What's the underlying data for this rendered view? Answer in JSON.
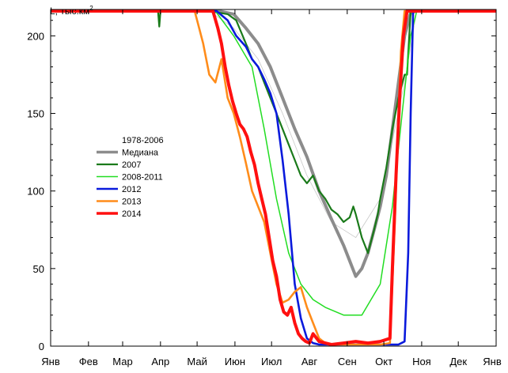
{
  "chart_data": {
    "type": "line",
    "title": "",
    "xlabel": "",
    "ylabel": "L, тыс.км",
    "ylabel_superscript": "2",
    "xlim": [
      0,
      365
    ],
    "ylim": [
      0,
      217
    ],
    "yticks": [
      0,
      50,
      100,
      150,
      200
    ],
    "month_labels": [
      "Янв",
      "Фев",
      "Мар",
      "Апр",
      "Май",
      "Июн",
      "Июл",
      "Авг",
      "Сен",
      "Окт",
      "Ноя",
      "Дек",
      "Янв"
    ],
    "month_days": [
      0,
      31,
      59,
      90,
      120,
      151,
      181,
      212,
      243,
      273,
      304,
      334,
      365
    ],
    "grid": false,
    "legend_position": "middle-left",
    "series": [
      {
        "name": "1978-2006",
        "color": "#c8c8c8",
        "width": 0.8,
        "x": [
          0,
          130,
          150,
          170,
          190,
          210,
          230,
          250,
          270,
          290,
          300,
          365
        ],
        "y": [
          216,
          216,
          205,
          185,
          150,
          110,
          80,
          70,
          95,
          170,
          216,
          216
        ]
      },
      {
        "name": "Медиана",
        "color": "#8c8c8c",
        "width": 4,
        "x": [
          0,
          138,
          150,
          160,
          170,
          180,
          190,
          200,
          210,
          220,
          230,
          240,
          245,
          250,
          255,
          260,
          265,
          270,
          275,
          280,
          285,
          290,
          295,
          300,
          365
        ],
        "y": [
          216,
          216,
          214,
          205,
          195,
          180,
          160,
          140,
          122,
          100,
          82,
          65,
          55,
          45,
          50,
          60,
          75,
          90,
          110,
          140,
          170,
          200,
          215,
          216,
          216
        ]
      },
      {
        "name": "2007",
        "color": "#1a7a1a",
        "width": 2.2,
        "x": [
          0,
          88,
          89,
          90,
          130,
          145,
          152,
          160,
          165,
          170,
          175,
          180,
          185,
          190,
          195,
          200,
          205,
          210,
          215,
          220,
          225,
          230,
          235,
          240,
          245,
          248,
          250,
          255,
          260,
          265,
          268,
          270,
          275,
          280,
          285,
          290,
          292,
          295,
          365
        ],
        "y": [
          216,
          216,
          206,
          216,
          216,
          214,
          210,
          195,
          185,
          180,
          170,
          160,
          150,
          140,
          130,
          120,
          110,
          105,
          110,
          100,
          95,
          88,
          85,
          80,
          83,
          90,
          85,
          70,
          60,
          75,
          85,
          95,
          115,
          140,
          160,
          175,
          175,
          216,
          216
        ]
      },
      {
        "name": "2008-2011",
        "color": "#22dd22",
        "width": 1.5,
        "x": [
          0,
          135,
          150,
          165,
          175,
          185,
          195,
          205,
          215,
          225,
          240,
          255,
          270,
          280,
          288,
          295,
          300,
          365
        ],
        "y": [
          216,
          216,
          200,
          180,
          140,
          95,
          60,
          40,
          30,
          25,
          20,
          20,
          40,
          90,
          150,
          200,
          216,
          216
        ]
      },
      {
        "name": "2012",
        "color": "#0a1adc",
        "width": 2.6,
        "x": [
          0,
          136,
          145,
          152,
          160,
          165,
          170,
          175,
          180,
          185,
          190,
          195,
          200,
          205,
          210,
          215,
          220,
          230,
          240,
          250,
          260,
          270,
          280,
          285,
          290,
          293,
          295,
          297,
          365
        ],
        "y": [
          216,
          216,
          210,
          200,
          193,
          185,
          180,
          172,
          163,
          150,
          120,
          85,
          40,
          18,
          5,
          2,
          1,
          1,
          1,
          1,
          1,
          1,
          1,
          1,
          3,
          60,
          150,
          216,
          216
        ]
      },
      {
        "name": "2013",
        "color": "#ff8c1a",
        "width": 2.6,
        "x": [
          0,
          118,
          120,
          125,
          130,
          135,
          140,
          145,
          150,
          155,
          160,
          165,
          170,
          175,
          180,
          185,
          190,
          195,
          200,
          205,
          210,
          215,
          220,
          225,
          230,
          240,
          250,
          260,
          270,
          278,
          282,
          285,
          287,
          290,
          365
        ],
        "y": [
          216,
          216,
          210,
          195,
          175,
          170,
          185,
          160,
          150,
          135,
          118,
          100,
          90,
          80,
          60,
          40,
          28,
          30,
          35,
          38,
          25,
          15,
          5,
          2,
          1,
          1,
          1,
          1,
          1,
          2,
          80,
          150,
          190,
          216,
          216
        ]
      },
      {
        "name": "2014",
        "color": "#ff1010",
        "width": 4,
        "x": [
          0,
          133,
          137,
          140,
          143,
          146,
          149,
          152,
          155,
          158,
          161,
          164,
          167,
          170,
          173,
          176,
          179,
          182,
          185,
          188,
          191,
          194,
          197,
          200,
          203,
          206,
          209,
          212,
          215,
          220,
          225,
          230,
          240,
          250,
          260,
          270,
          278,
          280,
          283,
          286,
          289,
          292,
          365
        ],
        "y": [
          216,
          216,
          205,
          195,
          180,
          168,
          158,
          150,
          143,
          140,
          135,
          125,
          117,
          105,
          95,
          85,
          70,
          55,
          45,
          30,
          22,
          20,
          25,
          15,
          8,
          5,
          3,
          2,
          8,
          3,
          2,
          1,
          2,
          3,
          2,
          3,
          5,
          50,
          110,
          160,
          200,
          216,
          216
        ]
      }
    ]
  }
}
